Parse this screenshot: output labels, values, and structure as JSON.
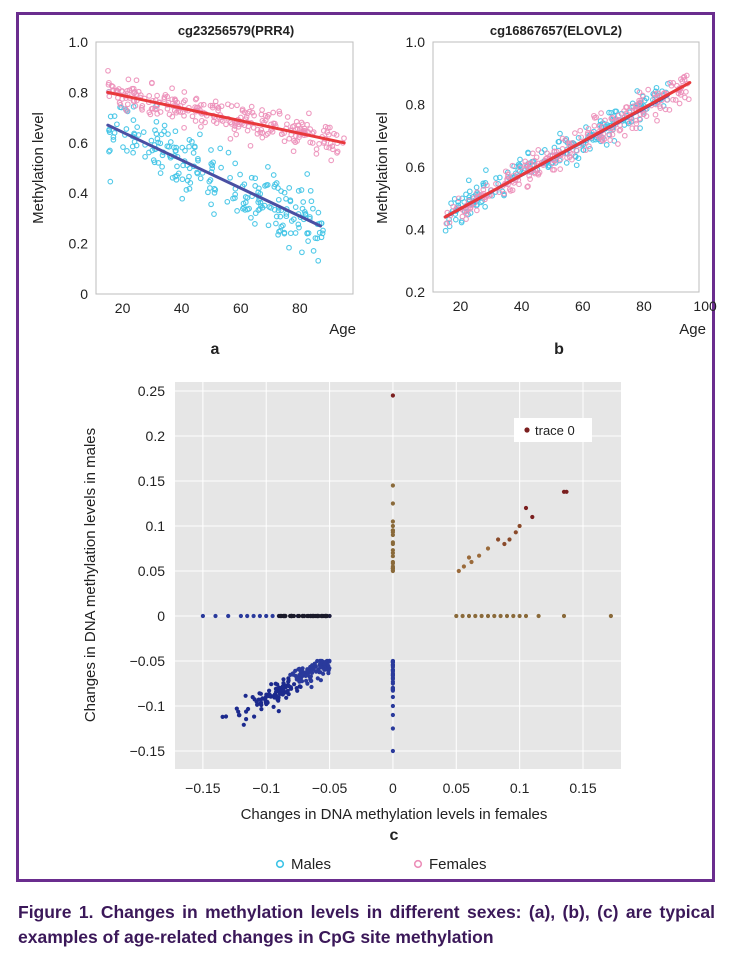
{
  "figure": {
    "caption": "Figure 1. Changes in methylation levels in different sexes: (a), (b), (c) are typical examples of age-related changes in CpG site methylation"
  },
  "colors": {
    "males": "#3ec3e6",
    "females": "#ec8fb9",
    "male_line": "#4a4fa3",
    "female_line": "#e8383b",
    "frame": "#6a2d8e",
    "c_background": "#e6e6e6"
  },
  "legend": {
    "males": "Males",
    "females": "Females"
  },
  "chart_data": [
    {
      "panel": "a",
      "type": "scatter",
      "title": "cg23256579(PRR4)",
      "xlabel": "Age",
      "ylabel": "Methylation level",
      "xlim": [
        11,
        98
      ],
      "ylim": [
        0,
        1.0
      ],
      "xticks": [
        20,
        40,
        60,
        80
      ],
      "yticks": [
        0,
        0.2,
        0.4,
        0.6,
        0.8,
        1.0
      ],
      "ytick_labels": [
        "0",
        "0.2",
        "0.4",
        "0.6",
        "0.8",
        "1.0"
      ],
      "grid": false,
      "series": [
        {
          "group": "Males",
          "color": "#3ec3e6",
          "x_range": [
            15,
            88
          ],
          "trend": {
            "start": [
              15,
              0.67
            ],
            "end": [
              87,
              0.27
            ]
          },
          "spread": 0.09,
          "n_points": 240
        },
        {
          "group": "Females",
          "color": "#ec8fb9",
          "x_range": [
            15,
            95
          ],
          "trend": {
            "start": [
              15,
              0.8
            ],
            "end": [
              95,
              0.6
            ]
          },
          "spread": 0.045,
          "n_points": 270
        }
      ],
      "regression_lines": [
        {
          "group": "Males",
          "color": "#4a4fa3",
          "x": [
            15,
            87
          ],
          "y": [
            0.67,
            0.27
          ]
        },
        {
          "group": "Females",
          "color": "#e8383b",
          "x": [
            15,
            95
          ],
          "y": [
            0.8,
            0.6
          ]
        }
      ]
    },
    {
      "panel": "b",
      "type": "scatter",
      "title": "cg16867657(ELOVL2)",
      "xlabel": "Age",
      "ylabel": "Methylation level",
      "xlim": [
        11,
        98
      ],
      "ylim": [
        0.2,
        1.0
      ],
      "xticks": [
        20,
        40,
        60,
        80,
        100
      ],
      "yticks": [
        0.2,
        0.4,
        0.6,
        0.8,
        1.0
      ],
      "ytick_labels": [
        "0.2",
        "0.4",
        "0.6",
        "0.8",
        "1.0"
      ],
      "grid": false,
      "series": [
        {
          "group": "Males",
          "color": "#3ec3e6",
          "x_range": [
            15,
            88
          ],
          "trend": {
            "start": [
              15,
              0.44
            ],
            "end": [
              88,
              0.84
            ]
          },
          "spread": 0.035,
          "n_points": 230
        },
        {
          "group": "Females",
          "color": "#ec8fb9",
          "x_range": [
            15,
            95
          ],
          "trend": {
            "start": [
              15,
              0.44
            ],
            "end": [
              95,
              0.87
            ]
          },
          "spread": 0.035,
          "n_points": 260
        }
      ],
      "regression_lines": [
        {
          "group": "Males",
          "color": "#4a4fa3",
          "x": [
            15,
            88
          ],
          "y": [
            0.44,
            0.83
          ]
        },
        {
          "group": "Females",
          "color": "#e8383b",
          "x": [
            15,
            95
          ],
          "y": [
            0.44,
            0.87
          ]
        }
      ]
    },
    {
      "panel": "c",
      "type": "scatter",
      "xlabel": "Changes in DNA methylation levels in females",
      "ylabel": "Changes in DNA methylation levels in males",
      "xlim": [
        -0.172,
        0.18
      ],
      "ylim": [
        -0.17,
        0.26
      ],
      "xticks": [
        -0.15,
        -0.1,
        -0.05,
        0,
        0.05,
        0.1,
        0.15
      ],
      "xtick_labels": [
        "−0.15",
        "−0.1",
        "−0.05",
        "0",
        "0.05",
        "0.1",
        "0.15"
      ],
      "yticks": [
        -0.15,
        -0.1,
        -0.05,
        0,
        0.05,
        0.1,
        0.15,
        0.2,
        0.25
      ],
      "ytick_labels": [
        "−0.15",
        "−0.1",
        "−0.05",
        "0",
        "0.05",
        "0.1",
        "0.15",
        "0.2",
        "0.25"
      ],
      "grid": true,
      "legend": {
        "entries": [
          "trace 0"
        ],
        "position": "top-right"
      },
      "colorscale": [
        "#1c2a8e",
        "#2e3b9a",
        "#1a1a33",
        "#6e5a3a",
        "#9a6a3a",
        "#8a2a2a"
      ],
      "points": {
        "x_axis_group": [
          [
            -0.15,
            0
          ],
          [
            -0.14,
            0
          ],
          [
            -0.13,
            0
          ],
          [
            -0.12,
            0
          ],
          [
            -0.115,
            0
          ],
          [
            -0.11,
            0
          ],
          [
            -0.105,
            0
          ],
          [
            -0.1,
            0
          ],
          [
            -0.095,
            0
          ],
          [
            -0.09,
            0
          ],
          [
            -0.085,
            0
          ],
          [
            -0.08,
            0
          ],
          [
            -0.075,
            0
          ],
          [
            -0.07,
            0
          ],
          [
            -0.065,
            0
          ],
          [
            -0.06,
            0
          ],
          [
            -0.055,
            0
          ],
          [
            -0.05,
            0
          ]
        ],
        "y_axis_negative": [
          [
            0,
            -0.15
          ],
          [
            0,
            -0.125
          ],
          [
            0,
            -0.11
          ],
          [
            0,
            -0.1
          ],
          [
            0,
            -0.09
          ],
          [
            0,
            -0.08
          ],
          [
            0,
            -0.075
          ],
          [
            0,
            -0.07
          ],
          [
            0,
            -0.065
          ],
          [
            0,
            -0.06
          ],
          [
            0,
            -0.055
          ],
          [
            0,
            -0.05
          ]
        ],
        "y_axis_positive": [
          [
            0,
            0.05
          ],
          [
            0,
            0.055
          ],
          [
            0,
            0.06
          ],
          [
            0,
            0.07
          ],
          [
            0,
            0.08
          ],
          [
            0,
            0.09
          ],
          [
            0,
            0.095
          ],
          [
            0,
            0.1
          ],
          [
            0,
            0.105
          ],
          [
            0,
            0.125
          ],
          [
            0,
            0.145
          ],
          [
            0,
            0.245
          ]
        ],
        "x_axis_positive": [
          [
            0.05,
            0
          ],
          [
            0.055,
            0
          ],
          [
            0.06,
            0
          ],
          [
            0.065,
            0
          ],
          [
            0.07,
            0
          ],
          [
            0.075,
            0
          ],
          [
            0.08,
            0
          ],
          [
            0.085,
            0
          ],
          [
            0.09,
            0
          ],
          [
            0.095,
            0
          ],
          [
            0.1,
            0
          ],
          [
            0.105,
            0
          ],
          [
            0.115,
            0
          ],
          [
            0.135,
            0
          ],
          [
            0.172,
            0
          ]
        ],
        "quadrant_positive": [
          [
            0.052,
            0.05
          ],
          [
            0.056,
            0.055
          ],
          [
            0.06,
            0.065
          ],
          [
            0.062,
            0.06
          ],
          [
            0.068,
            0.067
          ],
          [
            0.075,
            0.075
          ],
          [
            0.083,
            0.085
          ],
          [
            0.088,
            0.08
          ],
          [
            0.092,
            0.085
          ],
          [
            0.097,
            0.093
          ],
          [
            0.1,
            0.1
          ],
          [
            0.105,
            0.12
          ],
          [
            0.11,
            0.11
          ],
          [
            0.135,
            0.138
          ],
          [
            0.137,
            0.138
          ]
        ],
        "quadrant_negative": {
          "x_range": [
            -0.14,
            -0.05
          ],
          "trend": {
            "start": [
              -0.135,
              -0.12
            ],
            "end": [
              -0.05,
              -0.05
            ]
          },
          "n_points": 200
        }
      }
    }
  ],
  "panels": {
    "a_label": "a",
    "b_label": "b",
    "c_label": "c"
  }
}
